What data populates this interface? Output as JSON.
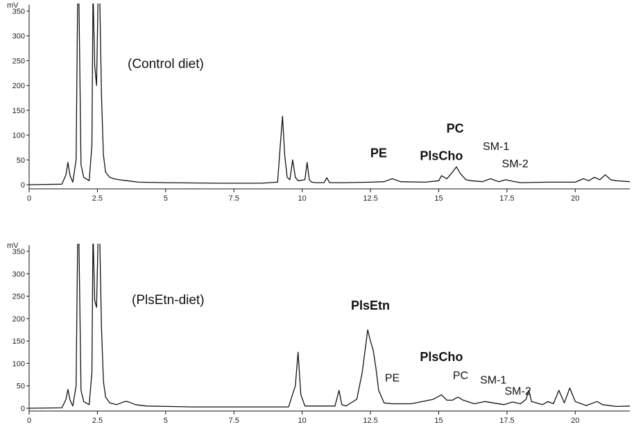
{
  "chart_data": [
    {
      "type": "line",
      "condition_label": "(Control diet)",
      "y_unit": "mV",
      "xlim": [
        0,
        22
      ],
      "ylim": [
        -10,
        395
      ],
      "x_ticks": [
        0,
        2.5,
        5,
        7.5,
        10,
        12.5,
        15,
        17.5,
        20
      ],
      "x_tick_labels": [
        "0",
        "2.5",
        "5",
        "7.5",
        "10",
        "12.5",
        "15",
        "17.5",
        "20"
      ],
      "y_ticks": [
        0,
        50,
        100,
        150,
        200,
        250,
        300,
        350
      ],
      "y_tick_labels": [
        "0",
        "50",
        "100",
        "150",
        "200",
        "250",
        "300",
        "350"
      ],
      "peak_labels": [
        {
          "text": "PE",
          "x": 12.8,
          "y": 55,
          "bold": true
        },
        {
          "text": "PlsCho",
          "x": 15.1,
          "y": 50,
          "bold": true
        },
        {
          "text": "PC",
          "x": 15.6,
          "y": 105,
          "bold": true
        },
        {
          "text": "SM-1",
          "x": 17.1,
          "y": 70,
          "bold": false
        },
        {
          "text": "SM-2",
          "x": 17.8,
          "y": 35,
          "bold": false
        }
      ],
      "series": [
        {
          "x": [
            0,
            1.2,
            1.35,
            1.42,
            1.5,
            1.6,
            1.72,
            1.78,
            1.82,
            1.9,
            2.0,
            2.2,
            2.3,
            2.34,
            2.4,
            2.47,
            2.53,
            2.58,
            2.65,
            2.72,
            2.8,
            2.95,
            3.1,
            3.3,
            3.6,
            4,
            5,
            7,
            8.5,
            9.1,
            9.2,
            9.28,
            9.36,
            9.45,
            9.55,
            9.65,
            9.75,
            9.85,
            10.1,
            10.18,
            10.26,
            10.35,
            10.5,
            10.8,
            10.9,
            11,
            11.5,
            12.5,
            13,
            13.3,
            13.6,
            14.5,
            15,
            15.1,
            15.3,
            15.5,
            15.65,
            15.8,
            16,
            16.2,
            16.6,
            16.9,
            17.2,
            17.45,
            17.7,
            18,
            19,
            20,
            20.3,
            20.5,
            20.7,
            20.9,
            21.1,
            21.3,
            21.5,
            22
          ],
          "y": [
            0,
            1,
            20,
            45,
            18,
            5,
            50,
            395,
            395,
            40,
            15,
            8,
            80,
            395,
            240,
            200,
            395,
            395,
            180,
            60,
            25,
            15,
            12,
            10,
            8,
            5,
            4,
            3,
            3,
            5,
            80,
            138,
            60,
            15,
            10,
            50,
            15,
            8,
            10,
            45,
            10,
            5,
            4,
            4,
            14,
            4,
            4,
            5,
            6,
            12,
            6,
            5,
            8,
            18,
            12,
            25,
            36,
            22,
            10,
            8,
            6,
            12,
            6,
            10,
            7,
            4,
            5,
            5,
            12,
            8,
            15,
            10,
            20,
            10,
            8,
            6
          ]
        }
      ]
    },
    {
      "type": "line",
      "condition_label": "(PlsEtn-diet)",
      "y_unit": "mV",
      "xlim": [
        0,
        22
      ],
      "ylim": [
        -10,
        395
      ],
      "x_ticks": [
        0,
        2.5,
        5,
        7.5,
        10,
        12.5,
        15,
        17.5,
        20
      ],
      "x_tick_labels": [
        "0",
        "2.5",
        "5",
        "7.5",
        "10",
        "12.5",
        "15",
        "17.5",
        "20"
      ],
      "y_ticks": [
        0,
        50,
        100,
        150,
        200,
        250,
        300,
        350
      ],
      "y_tick_labels": [
        "0",
        "50",
        "100",
        "150",
        "200",
        "250",
        "300",
        "350"
      ],
      "peak_labels": [
        {
          "text": "PlsEtn",
          "x": 12.5,
          "y": 220,
          "bold": true
        },
        {
          "text": "PE",
          "x": 13.3,
          "y": 60,
          "bold": false
        },
        {
          "text": "PlsCho",
          "x": 15.1,
          "y": 105,
          "bold": true
        },
        {
          "text": "PC",
          "x": 15.8,
          "y": 65,
          "bold": false
        },
        {
          "text": "SM-1",
          "x": 17.0,
          "y": 55,
          "bold": false
        },
        {
          "text": "SM-2",
          "x": 17.9,
          "y": 30,
          "bold": false
        }
      ],
      "series": [
        {
          "x": [
            0,
            1.2,
            1.35,
            1.42,
            1.5,
            1.6,
            1.72,
            1.78,
            1.82,
            1.9,
            2.0,
            2.2,
            2.3,
            2.34,
            2.4,
            2.47,
            2.53,
            2.58,
            2.65,
            2.72,
            2.8,
            2.95,
            3.2,
            3.5,
            3.6,
            3.9,
            4.3,
            6,
            8,
            9.5,
            9.75,
            9.85,
            9.95,
            10.1,
            10.5,
            11.2,
            11.35,
            11.45,
            11.6,
            12,
            12.2,
            12.4,
            12.5,
            12.6,
            12.7,
            12.8,
            13,
            13.3,
            14,
            14.8,
            15.1,
            15.3,
            15.5,
            15.7,
            15.9,
            16.3,
            16.7,
            17,
            17.4,
            17.7,
            18,
            18.2,
            18.3,
            18.4,
            18.8,
            19,
            19.2,
            19.4,
            19.6,
            19.8,
            20,
            20.4,
            20.8,
            21,
            21.5,
            22
          ],
          "y": [
            0,
            1,
            20,
            42,
            18,
            5,
            50,
            395,
            395,
            40,
            15,
            8,
            80,
            395,
            240,
            225,
            395,
            395,
            180,
            60,
            25,
            12,
            8,
            15,
            15,
            8,
            5,
            3,
            3,
            3,
            50,
            125,
            30,
            5,
            5,
            5,
            40,
            8,
            5,
            20,
            80,
            175,
            150,
            130,
            90,
            40,
            12,
            10,
            10,
            20,
            30,
            18,
            18,
            25,
            18,
            10,
            15,
            12,
            8,
            14,
            10,
            20,
            40,
            15,
            8,
            15,
            10,
            40,
            12,
            45,
            15,
            6,
            15,
            8,
            4,
            5
          ]
        }
      ]
    }
  ]
}
